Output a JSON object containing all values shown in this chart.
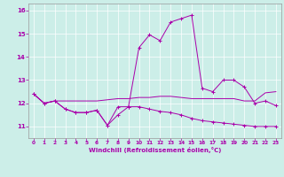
{
  "xlabel": "Windchill (Refroidissement éolien,°C)",
  "xlim": [
    -0.5,
    23.5
  ],
  "ylim": [
    10.5,
    16.3
  ],
  "yticks": [
    11,
    12,
    13,
    14,
    15,
    16
  ],
  "xticks": [
    0,
    1,
    2,
    3,
    4,
    5,
    6,
    7,
    8,
    9,
    10,
    11,
    12,
    13,
    14,
    15,
    16,
    17,
    18,
    19,
    20,
    21,
    22,
    23
  ],
  "bg_color": "#cceee8",
  "line_color": "#aa00aa",
  "grid_color": "#ffffff",
  "line1_x": [
    0,
    1,
    2,
    3,
    4,
    5,
    6,
    7,
    8,
    9,
    10,
    11,
    12,
    13,
    14,
    15,
    16,
    17,
    18,
    19,
    20,
    21,
    22,
    23
  ],
  "line1_y": [
    12.4,
    12.0,
    12.1,
    11.75,
    11.6,
    11.6,
    11.7,
    11.05,
    11.5,
    11.85,
    11.85,
    11.75,
    11.65,
    11.6,
    11.5,
    11.35,
    11.25,
    11.2,
    11.15,
    11.1,
    11.05,
    11.0,
    11.0,
    11.0
  ],
  "line2_x": [
    0,
    1,
    2,
    3,
    4,
    5,
    6,
    7,
    8,
    9,
    10,
    11,
    12,
    13,
    14,
    15,
    16,
    17,
    18,
    19,
    20,
    21,
    22,
    23
  ],
  "line2_y": [
    12.4,
    12.0,
    12.1,
    12.1,
    12.1,
    12.1,
    12.1,
    12.15,
    12.2,
    12.2,
    12.25,
    12.25,
    12.3,
    12.3,
    12.25,
    12.2,
    12.2,
    12.2,
    12.2,
    12.2,
    12.1,
    12.1,
    12.45,
    12.5
  ],
  "line3_x": [
    0,
    1,
    2,
    3,
    4,
    5,
    6,
    7,
    8,
    9,
    10,
    11,
    12,
    13,
    14,
    15,
    16,
    17,
    18,
    19,
    20,
    21,
    22,
    23
  ],
  "line3_y": [
    12.4,
    12.0,
    12.1,
    11.75,
    11.6,
    11.6,
    11.7,
    11.05,
    11.85,
    11.85,
    14.4,
    14.95,
    14.7,
    15.5,
    15.65,
    15.8,
    12.65,
    12.5,
    13.0,
    13.0,
    12.7,
    12.0,
    12.1,
    11.9
  ]
}
